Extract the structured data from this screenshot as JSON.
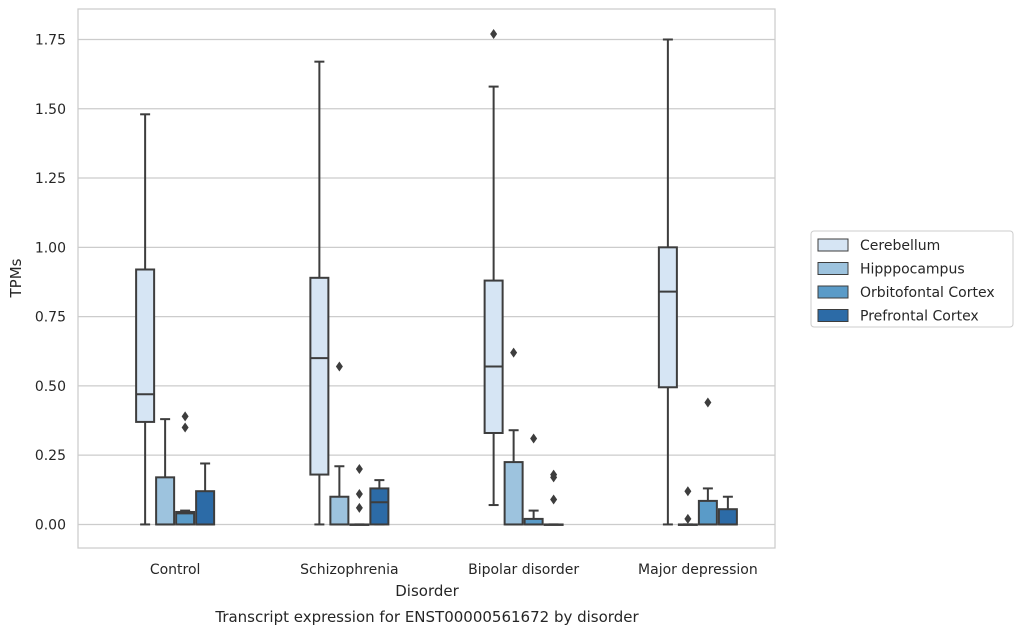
{
  "chart_data": {
    "type": "box",
    "caption": "Transcript expression for ENST00000561672 by disorder",
    "xlabel": "Disorder",
    "ylabel": "TPMs",
    "ylim": [
      -0.085,
      1.86
    ],
    "yticks": [
      0.0,
      0.25,
      0.5,
      0.75,
      1.0,
      1.25,
      1.5,
      1.75
    ],
    "ytick_labels": [
      "0.00",
      "0.25",
      "0.50",
      "0.75",
      "1.00",
      "1.25",
      "1.50",
      "1.75"
    ],
    "grid": "horizontal",
    "legend_position": "right",
    "categories": [
      "Control",
      "Schizophrenia",
      "Bipolar disorder",
      "Major depression"
    ],
    "series": [
      {
        "name": "Cerebellum",
        "color": "#d6e5f4",
        "boxes": [
          {
            "whislo": 0.0,
            "q1": 0.37,
            "med": 0.47,
            "q3": 0.92,
            "whishi": 1.48,
            "fliers": []
          },
          {
            "whislo": 0.0,
            "q1": 0.18,
            "med": 0.6,
            "q3": 0.89,
            "whishi": 1.67,
            "fliers": []
          },
          {
            "whislo": 0.07,
            "q1": 0.33,
            "med": 0.57,
            "q3": 0.88,
            "whishi": 1.58,
            "fliers": [
              1.77
            ]
          },
          {
            "whislo": 0.0,
            "q1": 0.495,
            "med": 0.84,
            "q3": 1.0,
            "whishi": 1.75,
            "fliers": []
          }
        ]
      },
      {
        "name": "Hipppocampus",
        "color": "#9dc3de",
        "boxes": [
          {
            "whislo": 0.0,
            "q1": 0.0,
            "med": 0.0,
            "q3": 0.17,
            "whishi": 0.38,
            "fliers": []
          },
          {
            "whislo": 0.0,
            "q1": 0.0,
            "med": 0.0,
            "q3": 0.1,
            "whishi": 0.21,
            "fliers": [
              0.57
            ]
          },
          {
            "whislo": 0.0,
            "q1": 0.0,
            "med": 0.0,
            "q3": 0.225,
            "whishi": 0.34,
            "fliers": [
              0.62
            ]
          },
          {
            "whislo": 0.0,
            "q1": 0.0,
            "med": 0.0,
            "q3": 0.0,
            "whishi": 0.0,
            "fliers": [
              0.02,
              0.12
            ]
          }
        ]
      },
      {
        "name": "Orbitofontal Cortex",
        "color": "#5a9bc8",
        "boxes": [
          {
            "whislo": 0.0,
            "q1": 0.0,
            "med": 0.04,
            "q3": 0.045,
            "whishi": 0.05,
            "fliers": [
              0.35,
              0.39
            ]
          },
          {
            "whislo": 0.0,
            "q1": 0.0,
            "med": 0.0,
            "q3": 0.0,
            "whishi": 0.0,
            "fliers": [
              0.06,
              0.11,
              0.2
            ]
          },
          {
            "whislo": 0.0,
            "q1": 0.0,
            "med": 0.0,
            "q3": 0.02,
            "whishi": 0.05,
            "fliers": [
              0.31
            ]
          },
          {
            "whislo": 0.0,
            "q1": 0.0,
            "med": 0.0,
            "q3": 0.085,
            "whishi": 0.13,
            "fliers": [
              0.44
            ]
          }
        ]
      },
      {
        "name": "Prefrontal Cortex",
        "color": "#2c6ba7",
        "boxes": [
          {
            "whislo": 0.0,
            "q1": 0.0,
            "med": 0.0,
            "q3": 0.12,
            "whishi": 0.22,
            "fliers": []
          },
          {
            "whislo": 0.0,
            "q1": 0.0,
            "med": 0.08,
            "q3": 0.13,
            "whishi": 0.16,
            "fliers": []
          },
          {
            "whislo": 0.0,
            "q1": 0.0,
            "med": 0.0,
            "q3": 0.0,
            "whishi": 0.0,
            "fliers": [
              0.09,
              0.17,
              0.18
            ]
          },
          {
            "whislo": 0.0,
            "q1": 0.0,
            "med": 0.0,
            "q3": 0.055,
            "whishi": 0.1,
            "fliers": []
          }
        ]
      }
    ]
  }
}
